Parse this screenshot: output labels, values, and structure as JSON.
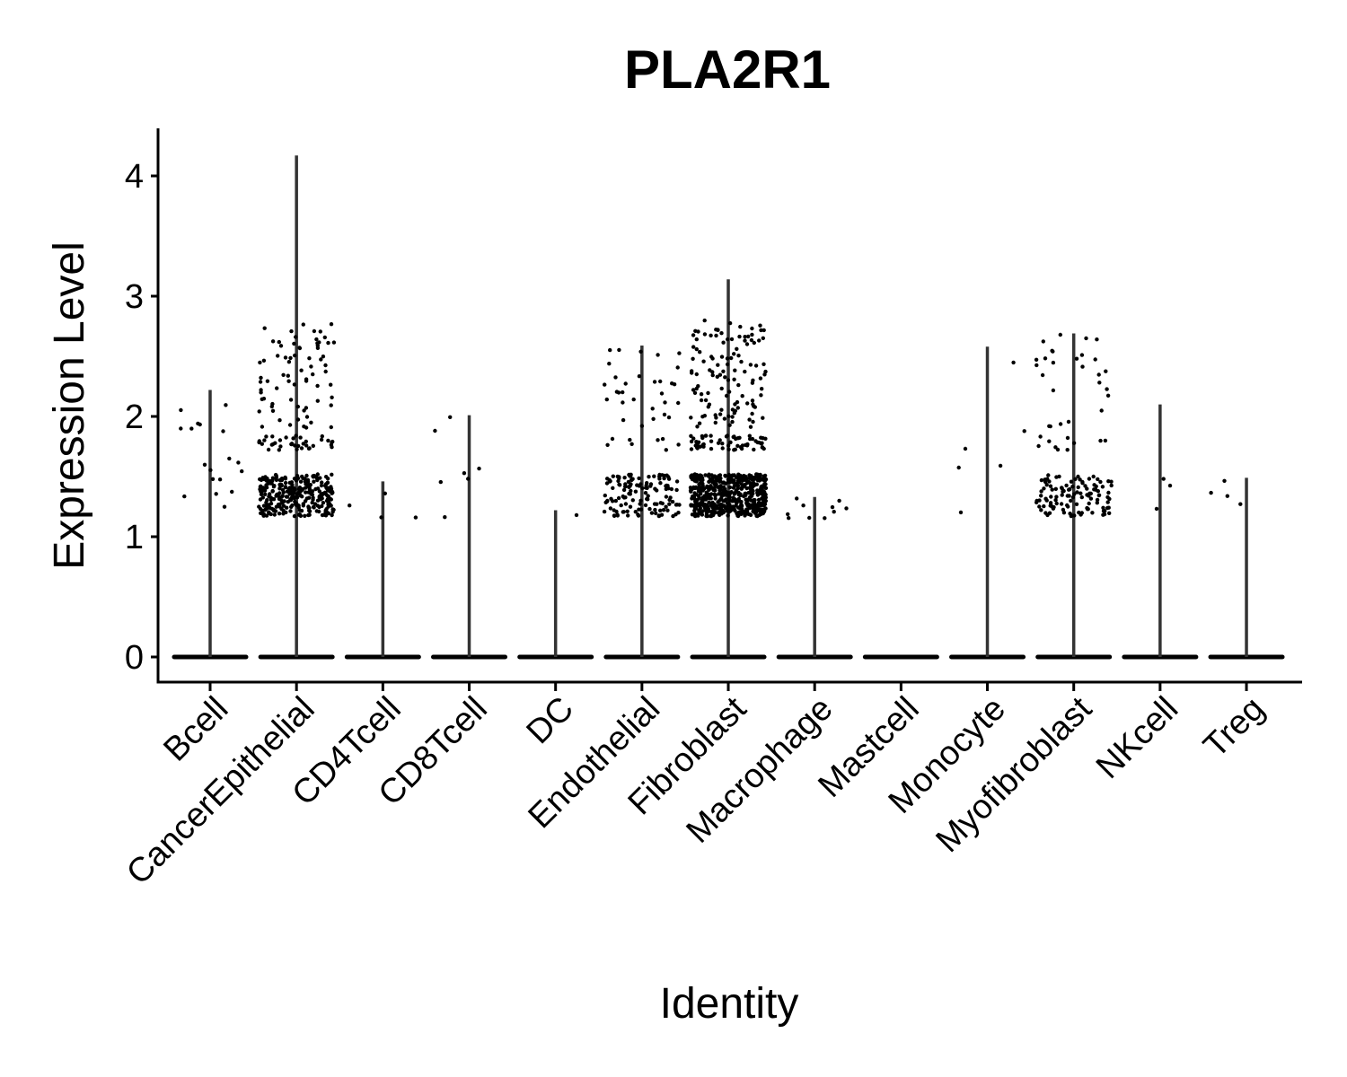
{
  "chart_data": {
    "type": "violin",
    "title": "PLA2R1",
    "xlabel": "Identity",
    "ylabel": "Expression Level",
    "ylim": [
      -0.2,
      4.4
    ],
    "yticks": [
      "0",
      "1",
      "2",
      "3",
      "4"
    ],
    "categories": [
      "Bcell",
      "CancerEpithelial",
      "CD4Tcell",
      "CD8Tcell",
      "DC",
      "Endothelial",
      "Fibroblast",
      "Macrophage",
      "Mastcell",
      "Monocyte",
      "Myofibroblast",
      "NKcell",
      "Treg"
    ],
    "max_expression": [
      2.22,
      4.17,
      1.46,
      2.01,
      1.22,
      2.59,
      3.14,
      1.33,
      0,
      2.58,
      2.69,
      2.1,
      1.49
    ],
    "nonzero_cells_approx": [
      18,
      400,
      4,
      7,
      1,
      170,
      700,
      10,
      0,
      6,
      150,
      3,
      4
    ],
    "point_color": "#000000",
    "violin_color": "#333333",
    "grid": false,
    "legend": "none"
  }
}
